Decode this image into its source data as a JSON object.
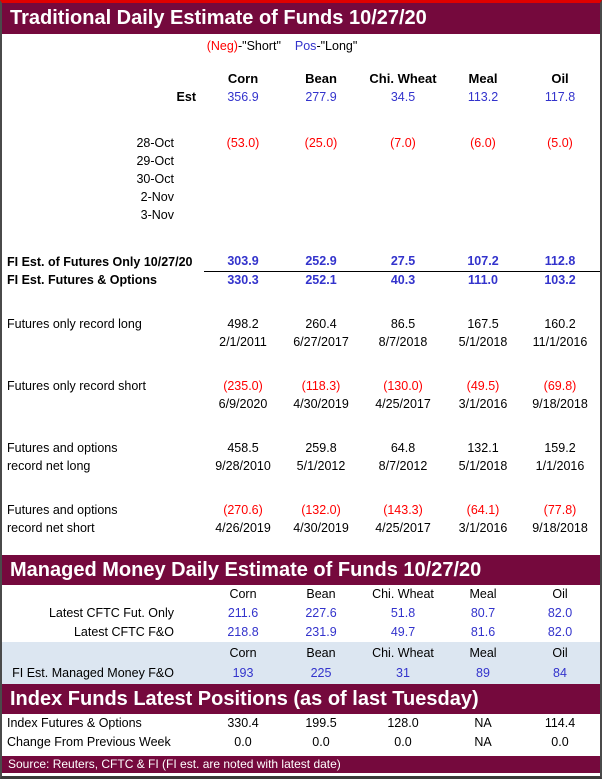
{
  "colors": {
    "maroon": "#75093d",
    "top_border": "#e00000",
    "blue": "#3333cc",
    "red": "#ff0000",
    "light_blue_band": "#dce6f1"
  },
  "columns": [
    "Corn",
    "Bean",
    "Chi. Wheat",
    "Meal",
    "Oil"
  ],
  "traditional": {
    "title": "Traditional Daily Estimate of Funds 10/27/20",
    "legend": {
      "neg": "(Neg)",
      "neg_rest": "-\"Short\"",
      "pos": "Pos",
      "pos_rest": "-\"Long\""
    },
    "est": {
      "label": "Est",
      "values": [
        "356.9",
        "277.9",
        "34.5",
        "113.2",
        "117.8"
      ]
    },
    "daily_rows": [
      {
        "label": "28-Oct",
        "values": [
          "(53.0)",
          "(25.0)",
          "(7.0)",
          "(6.0)",
          "(5.0)"
        ]
      },
      {
        "label": "29-Oct",
        "values": [
          "",
          "",
          "",
          "",
          ""
        ]
      },
      {
        "label": "30-Oct",
        "values": [
          "",
          "",
          "",
          "",
          ""
        ]
      },
      {
        "label": "2-Nov",
        "values": [
          "",
          "",
          "",
          "",
          ""
        ]
      },
      {
        "label": "3-Nov",
        "values": [
          "",
          "",
          "",
          "",
          ""
        ]
      }
    ],
    "fi_futures_only": {
      "label": "FI Est. of Futures Only 10/27/20",
      "values": [
        "303.9",
        "252.9",
        "27.5",
        "107.2",
        "112.8"
      ]
    },
    "fi_futures_options": {
      "label": "FI Est. Futures & Options",
      "values": [
        "330.3",
        "252.1",
        "40.3",
        "111.0",
        "103.2"
      ]
    },
    "records": [
      {
        "label1": "Futures only record long",
        "label2": "",
        "values": [
          "498.2",
          "260.4",
          "86.5",
          "167.5",
          "160.2"
        ],
        "dates": [
          "2/1/2011",
          "6/27/2017",
          "8/7/2018",
          "5/1/2018",
          "11/1/2016"
        ]
      },
      {
        "label1": "Futures only record short",
        "label2": "",
        "values": [
          "(235.0)",
          "(118.3)",
          "(130.0)",
          "(49.5)",
          "(69.8)"
        ],
        "dates": [
          "6/9/2020",
          "4/30/2019",
          "4/25/2017",
          "3/1/2016",
          "9/18/2018"
        ]
      },
      {
        "label1": "Futures and options",
        "label2": "record net long",
        "values": [
          "458.5",
          "259.8",
          "64.8",
          "132.1",
          "159.2"
        ],
        "dates": [
          "9/28/2010",
          "5/1/2012",
          "8/7/2012",
          "5/1/2018",
          "1/1/2016"
        ]
      },
      {
        "label1": "Futures and options",
        "label2": "record net short",
        "values": [
          "(270.6)",
          "(132.0)",
          "(143.3)",
          "(64.1)",
          "(77.8)"
        ],
        "dates": [
          "4/26/2019",
          "4/30/2019",
          "4/25/2017",
          "3/1/2016",
          "9/18/2018"
        ]
      }
    ]
  },
  "managed": {
    "title": "Managed Money Daily Estimate of Funds 10/27/20",
    "rows": [
      {
        "label": "Latest CFTC Fut. Only",
        "values": [
          "211.6",
          "227.6",
          "51.8",
          "80.7",
          "82.0"
        ]
      },
      {
        "label": "Latest CFTC F&O",
        "values": [
          "218.8",
          "231.9",
          "49.7",
          "81.6",
          "82.0"
        ]
      }
    ],
    "fi_row": {
      "label": "FI Est. Managed Money F&O",
      "values": [
        "193",
        "225",
        "31",
        "89",
        "84"
      ]
    }
  },
  "index_funds": {
    "title": "Index Funds Latest Positions (as of last Tuesday)",
    "rows": [
      {
        "label": "Index Futures & Options",
        "values": [
          "330.4",
          "199.5",
          "128.0",
          "NA",
          "114.4"
        ]
      },
      {
        "label": "Change From Previous Week",
        "values": [
          "0.0",
          "0.0",
          "0.0",
          "NA",
          "0.0"
        ]
      }
    ]
  },
  "footer": {
    "source": "Source: Reuters, CFTC & FI (FI est. are noted with latest date)"
  }
}
